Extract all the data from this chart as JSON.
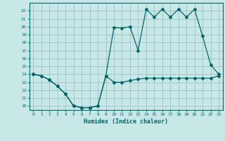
{
  "xlabel": "Humidex (Indice chaleur)",
  "background_color": "#c8e8e8",
  "grid_color": "#a0c8c8",
  "line_color": "#006666",
  "x_values": [
    0,
    1,
    2,
    3,
    4,
    5,
    6,
    7,
    8,
    9,
    10,
    11,
    12,
    13,
    14,
    15,
    16,
    17,
    18,
    19,
    20,
    21,
    22,
    23
  ],
  "upper_line": [
    14.0,
    13.8,
    13.3,
    12.5,
    11.5,
    10.0,
    9.8,
    9.8,
    10.0,
    13.8,
    19.9,
    19.8,
    20.0,
    17.0,
    22.2,
    21.2,
    22.2,
    21.2,
    22.2,
    21.2,
    22.2,
    18.8,
    15.2,
    14.0
  ],
  "lower_line": [
    14.0,
    13.8,
    13.3,
    12.5,
    11.5,
    10.0,
    9.8,
    9.8,
    10.0,
    13.8,
    13.0,
    13.0,
    13.2,
    13.4,
    13.5,
    13.5,
    13.5,
    13.5,
    13.5,
    13.5,
    13.5,
    13.5,
    13.5,
    13.8
  ],
  "ylim": [
    9.5,
    23.0
  ],
  "yticks": [
    10,
    11,
    12,
    13,
    14,
    15,
    16,
    17,
    18,
    19,
    20,
    21,
    22
  ],
  "xlim": [
    -0.5,
    23.5
  ]
}
